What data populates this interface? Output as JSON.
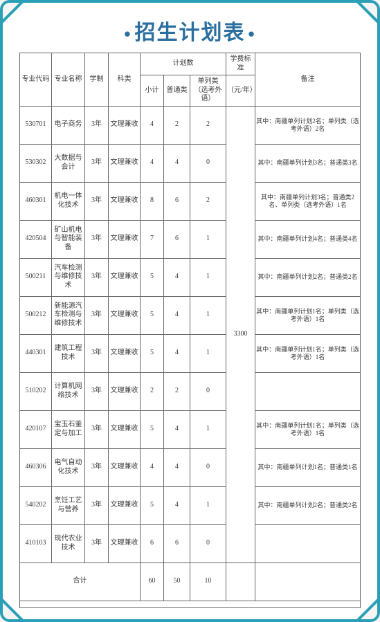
{
  "title": "招生计划表",
  "headers": {
    "major_code": "专业代码",
    "major_name": "专业名称",
    "duration": "学制",
    "subject_type": "科类",
    "plan_group": "计划数",
    "subtotal": "小计",
    "normal": "普通类",
    "separate": "单列类（选考外语）",
    "tuition_group": "学费标准",
    "tuition_unit": "（元/年）",
    "remark": "备注"
  },
  "tuition": "3300",
  "rows": [
    {
      "code": "530701",
      "name": "电子商务",
      "dur": "3年",
      "type": "文理兼收",
      "sub": "4",
      "norm": "2",
      "sep": "2",
      "remark": "其中：南疆单列计划2名；单列类（选考外语）2名"
    },
    {
      "code": "530302",
      "name": "大数据与会计",
      "dur": "3年",
      "type": "文理兼收",
      "sub": "4",
      "norm": "4",
      "sep": "0",
      "remark": "其中：南疆单列计划3名；普通类3名"
    },
    {
      "code": "460301",
      "name": "机电一体化技术",
      "dur": "3年",
      "type": "文理兼收",
      "sub": "8",
      "norm": "6",
      "sep": "2",
      "remark": "其中：南疆单列计划3名；普通类2名、单列类（选考外语）1名"
    },
    {
      "code": "420504",
      "name": "矿山机电与智能装备",
      "dur": "3年",
      "type": "文理兼收",
      "sub": "7",
      "norm": "6",
      "sep": "1",
      "remark": "其中：南疆单列计划4名；普通类4名"
    },
    {
      "code": "500211",
      "name": "汽车检测与维修技术",
      "dur": "3年",
      "type": "文理兼收",
      "sub": "5",
      "norm": "4",
      "sep": "1",
      "remark": "其中：南疆单列计划2名；普通类2名"
    },
    {
      "code": "500212",
      "name": "新能源汽车检测与维修技术",
      "dur": "3年",
      "type": "文理兼收",
      "sub": "5",
      "norm": "4",
      "sep": "1",
      "remark": "其中：南疆单列计划1名；单列类（选考外语）1名"
    },
    {
      "code": "440301",
      "name": "建筑工程技术",
      "dur": "3年",
      "type": "文理兼收",
      "sub": "5",
      "norm": "4",
      "sep": "1",
      "remark": "其中：南疆单列计划1名；单列类（选考外语）1名"
    },
    {
      "code": "510202",
      "name": "计算机网络技术",
      "dur": "3年",
      "type": "文理兼收",
      "sub": "2",
      "norm": "2",
      "sep": "0",
      "remark": ""
    },
    {
      "code": "420107",
      "name": "宝玉石鉴定与加工",
      "dur": "3年",
      "type": "文理兼收",
      "sub": "5",
      "norm": "4",
      "sep": "1",
      "remark": "其中：南疆单列计划1名；单列类（选考外语）1名"
    },
    {
      "code": "460306",
      "name": "电气自动化技术",
      "dur": "3年",
      "type": "文理兼收",
      "sub": "4",
      "norm": "4",
      "sep": "0",
      "remark": "其中：南疆单列计划1名；普通类1名"
    },
    {
      "code": "540202",
      "name": "烹饪工艺与营养",
      "dur": "3年",
      "type": "文理兼收",
      "sub": "5",
      "norm": "4",
      "sep": "1",
      "remark": "其中：南疆单列计划2名；普通类2名"
    },
    {
      "code": "410103",
      "name": "现代农业技术",
      "dur": "3年",
      "type": "文理兼收",
      "sub": "6",
      "norm": "6",
      "sep": "0",
      "remark": ""
    }
  ],
  "totals": {
    "label": "合计",
    "sub": "60",
    "norm": "50",
    "sep": "10"
  },
  "colors": {
    "frame": "#2a9fb5",
    "title": "#2a6fa0",
    "border": "#666666",
    "text": "#3a3a3a",
    "bg": "#ffffff"
  }
}
